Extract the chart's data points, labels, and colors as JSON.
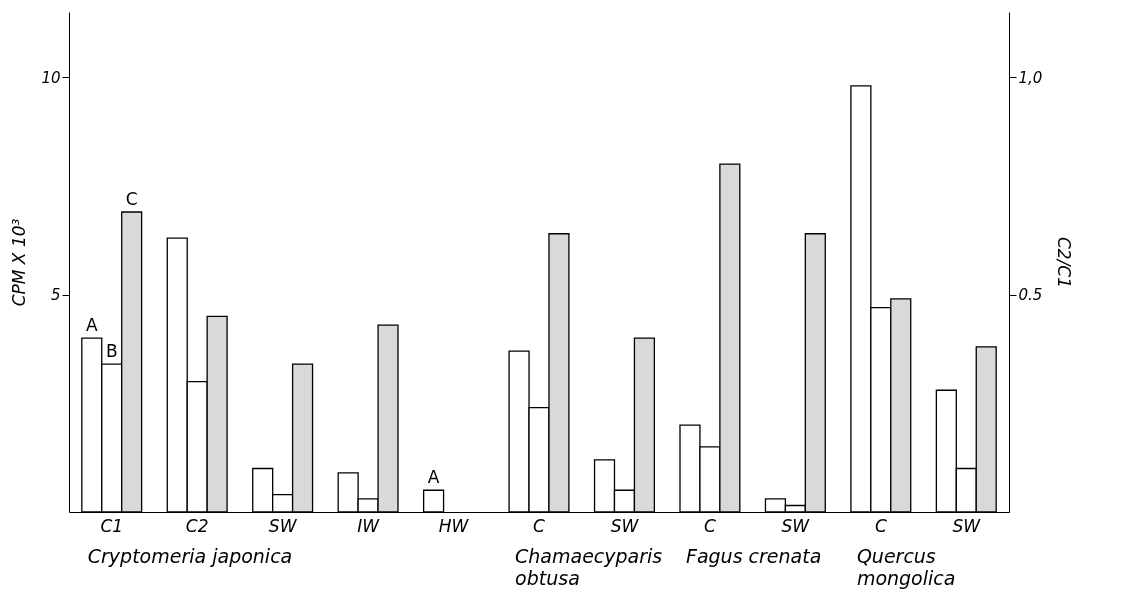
{
  "chart_data": {
    "type": "bar",
    "ylabel": "CPM X 10³",
    "y2label": "C2/C1",
    "categories": [
      "C1",
      "C2",
      "SW",
      "IW",
      "HW",
      "C",
      "SW",
      "C",
      "SW",
      "C",
      "SW"
    ],
    "series": [
      {
        "name": "A",
        "color": "#ffffff",
        "values": [
          4.0,
          6.3,
          1.0,
          0.9,
          0.5,
          3.7,
          1.2,
          2.0,
          0.3,
          9.8,
          2.8
        ]
      },
      {
        "name": "B",
        "color": "#ffffff",
        "values": [
          3.4,
          3.0,
          0.4,
          0.3,
          null,
          2.4,
          0.5,
          1.5,
          0.15,
          4.7,
          1.0
        ]
      },
      {
        "name": "C",
        "color": "#d9d9d9",
        "axis": "y2",
        "values": [
          0.69,
          0.45,
          0.34,
          0.43,
          null,
          0.64,
          0.4,
          0.8,
          0.64,
          0.49,
          0.38
        ]
      }
    ],
    "ylim": [
      0,
      11.5
    ],
    "yticks": [
      5,
      10
    ],
    "y2lim": [
      0,
      1.15
    ],
    "y2ticks": [
      0.5,
      {
        "value": 1.0,
        "label": "1,0"
      }
    ],
    "annotations": [
      "Cryptomeria japonica",
      "Chamaecyparis obtusa",
      "Fagus crenata",
      "Quercus mongolica"
    ]
  }
}
